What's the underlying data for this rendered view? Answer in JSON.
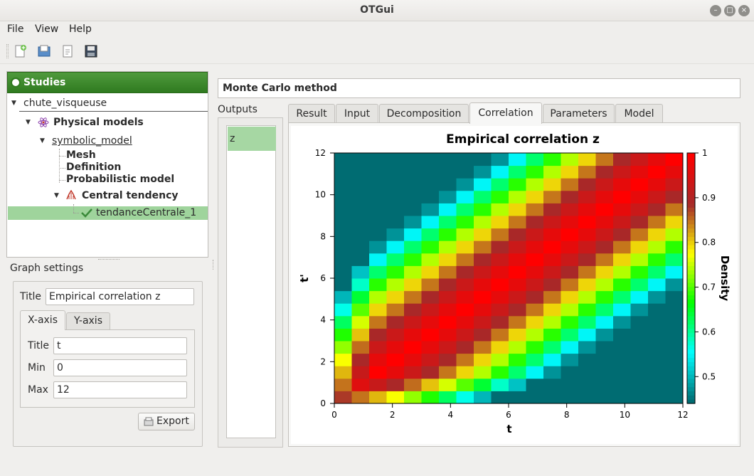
{
  "window": {
    "title": "OTGui"
  },
  "menu": {
    "file": "File",
    "view": "View",
    "help": "Help"
  },
  "tree": {
    "header": "Studies",
    "study": "chute_visqueuse",
    "physical_models": "Physical models",
    "model": "symbolic_model",
    "mesh": "Mesh",
    "definition": "Definition",
    "probabilistic": "Probabilistic model",
    "central_tendency": "Central tendency",
    "analysis": "tendanceCentrale_1"
  },
  "graph_settings": {
    "label": "Graph settings",
    "title_label": "Title",
    "title_value": "Empirical correlation z",
    "tabs": [
      "X-axis",
      "Y-axis"
    ],
    "x_title_label": "Title",
    "x_title_value": "t",
    "min_label": "Min",
    "min_value": "0",
    "max_label": "Max",
    "max_value": "12",
    "export": "Export"
  },
  "main": {
    "method": "Monte Carlo method",
    "outputs_label": "Outputs",
    "outputs": [
      "z"
    ],
    "tabs": [
      "Result",
      "Input",
      "Decomposition",
      "Correlation",
      "Parameters",
      "Model"
    ],
    "active_tab": "Correlation"
  },
  "chart_data": {
    "type": "heatmap",
    "title": "Empirical correlation z",
    "xlabel": "t",
    "ylabel": "t'",
    "xlim": [
      0,
      12
    ],
    "ylim": [
      0,
      12
    ],
    "x_ticks": [
      "0",
      "2",
      "4",
      "6",
      "8",
      "10",
      "12"
    ],
    "y_ticks": [
      "0",
      "2",
      "4",
      "6",
      "8",
      "10",
      "12"
    ],
    "colorbar": {
      "label": "Density",
      "ticks": [
        "0.5",
        "0.6",
        "0.7",
        "0.8",
        "0.9",
        "1"
      ],
      "range": [
        0.44,
        1.0
      ],
      "colors": [
        "#006c72",
        "#00ffff",
        "#00ff00",
        "#ffff00",
        "#a52a2a",
        "#ff0000"
      ]
    },
    "grid_size": 20,
    "model": "value(i,j) approx = 1 - 0.07*|i-j|/… (symmetric, diagonal = 1, low near t=0)"
  }
}
